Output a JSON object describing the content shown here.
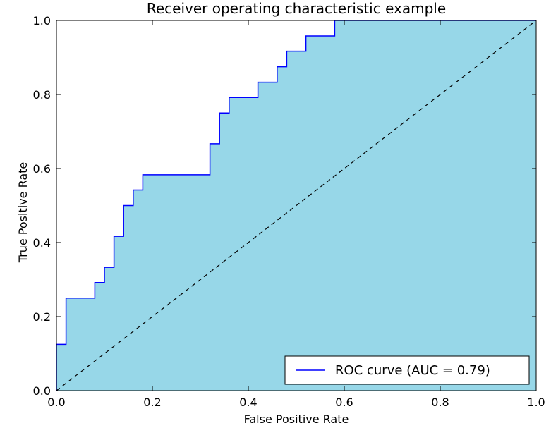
{
  "chart_data": {
    "type": "line",
    "title": "Receiver operating characteristic example",
    "xlabel": "False Positive Rate",
    "ylabel": "True Positive Rate",
    "xlim": [
      0.0,
      1.0
    ],
    "ylim": [
      0.0,
      1.0
    ],
    "grid": false,
    "legend": "lower-right",
    "xticks": [
      "0.0",
      "0.2",
      "0.4",
      "0.6",
      "0.8",
      "1.0"
    ],
    "yticks": [
      "0.0",
      "0.2",
      "0.4",
      "0.6",
      "0.8",
      "1.0"
    ],
    "series": [
      {
        "name": "ROC curve (AUC = 0.79)",
        "color": "#0000ff",
        "fill_color": "#97d7e8",
        "x": [
          0.0,
          0.0,
          0.02,
          0.02,
          0.08,
          0.08,
          0.1,
          0.1,
          0.12,
          0.12,
          0.14,
          0.14,
          0.16,
          0.16,
          0.18,
          0.18,
          0.32,
          0.32,
          0.34,
          0.34,
          0.36,
          0.36,
          0.42,
          0.42,
          0.46,
          0.46,
          0.48,
          0.48,
          0.52,
          0.52,
          0.58,
          0.58,
          1.0
        ],
        "y": [
          0.0,
          0.125,
          0.125,
          0.25,
          0.25,
          0.292,
          0.292,
          0.333,
          0.333,
          0.417,
          0.417,
          0.5,
          0.5,
          0.542,
          0.542,
          0.583,
          0.583,
          0.667,
          0.667,
          0.75,
          0.75,
          0.792,
          0.792,
          0.833,
          0.833,
          0.875,
          0.875,
          0.917,
          0.917,
          0.958,
          0.958,
          1.0,
          1.0
        ]
      },
      {
        "x": [
          0.0,
          1.0
        ],
        "y": [
          0.0,
          1.0
        ],
        "color": "#000000",
        "style": "dashed"
      }
    ]
  }
}
